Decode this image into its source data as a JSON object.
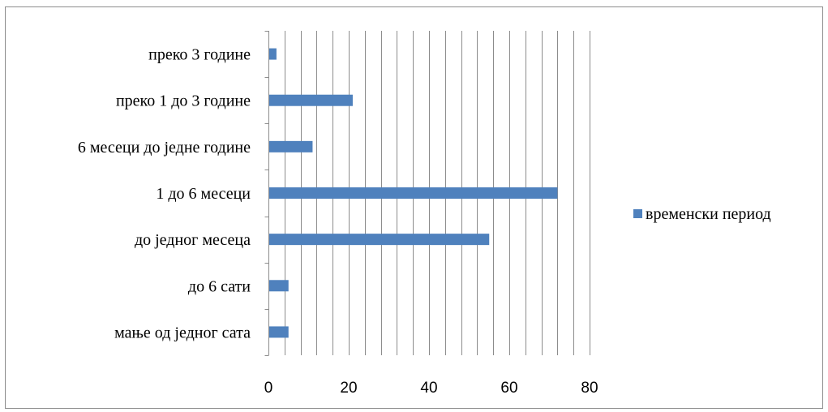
{
  "chart_data": {
    "type": "bar",
    "orientation": "horizontal",
    "categories": [
      "мање од једног сата",
      "до 6  сати",
      "до једног месеца",
      "1 до 6 месеци",
      "6 месеци до једне године",
      "преко 1 до 3 године",
      "преко 3 године"
    ],
    "series": [
      {
        "name": "временски период",
        "values": [
          5,
          5,
          55,
          72,
          11,
          21,
          2
        ],
        "color": "#4f81bd"
      }
    ],
    "xlim": [
      0,
      80
    ],
    "x_ticks": [
      "0",
      "20",
      "40",
      "60",
      "80"
    ],
    "x_minor_grid_step": 4,
    "grid": true,
    "legend_position": "right",
    "title": "",
    "xlabel": "",
    "ylabel": ""
  }
}
